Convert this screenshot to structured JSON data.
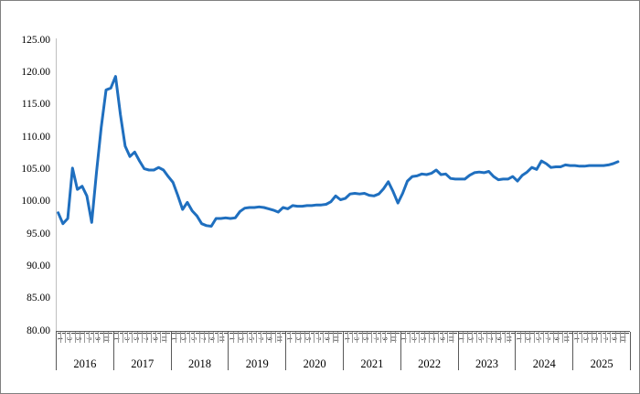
{
  "figure": {
    "background_color": "#ffffff",
    "frame_border_color": "#808080",
    "axis_line_color": "#bfbfbf",
    "x_axis_line_color": "#595959",
    "text_color": "#000000"
  },
  "chart_data": {
    "type": "line",
    "title": "",
    "grid": false,
    "legend": false,
    "ylim": [
      80,
      125
    ],
    "y_tick_labels": [
      "125.00",
      "120.00",
      "115.00",
      "110.00",
      "105.00",
      "100.00",
      "95.00",
      "90.00",
      "85.00",
      "80.00"
    ],
    "x_years": [
      "2016",
      "2017",
      "2018",
      "2019",
      "2020",
      "2021",
      "2022",
      "2023",
      "2024",
      "2025"
    ],
    "x_month_tick_labels": [
      "1",
      "3",
      "5",
      "7",
      "9",
      "11"
    ],
    "months_per_year": 12,
    "x_first_month": "2016-01",
    "x_last_month": "2025-10",
    "series": [
      {
        "color": "#1f6fbf",
        "values": [
          98.3,
          96.6,
          97.4,
          105.2,
          101.9,
          102.4,
          100.9,
          96.8,
          104.5,
          111.5,
          117.3,
          117.6,
          119.4,
          113.5,
          108.6,
          107.0,
          107.7,
          106.3,
          105.1,
          104.9,
          104.9,
          105.3,
          104.9,
          103.9,
          103.0,
          101.0,
          98.8,
          99.9,
          98.6,
          97.8,
          96.6,
          96.3,
          96.2,
          97.4,
          97.4,
          97.5,
          97.4,
          97.5,
          98.5,
          99.0,
          99.1,
          99.1,
          99.2,
          99.1,
          98.9,
          98.7,
          98.4,
          99.1,
          98.9,
          99.4,
          99.3,
          99.3,
          99.4,
          99.4,
          99.5,
          99.5,
          99.6,
          100.0,
          100.9,
          100.3,
          100.5,
          101.2,
          101.3,
          101.2,
          101.3,
          101.0,
          100.9,
          101.2,
          102.0,
          103.1,
          101.6,
          99.8,
          101.3,
          103.2,
          103.9,
          104.0,
          104.3,
          104.2,
          104.4,
          104.9,
          104.2,
          104.3,
          103.6,
          103.5,
          103.5,
          103.5,
          104.1,
          104.5,
          104.6,
          104.5,
          104.7,
          103.9,
          103.4,
          103.5,
          103.5,
          103.9,
          103.2,
          104.1,
          104.6,
          105.3,
          105.0,
          106.3,
          105.9,
          105.3,
          105.4,
          105.4,
          105.7,
          105.6,
          105.6,
          105.5,
          105.5,
          105.6,
          105.6,
          105.6,
          105.6,
          105.7,
          105.9,
          106.2
        ]
      }
    ]
  }
}
